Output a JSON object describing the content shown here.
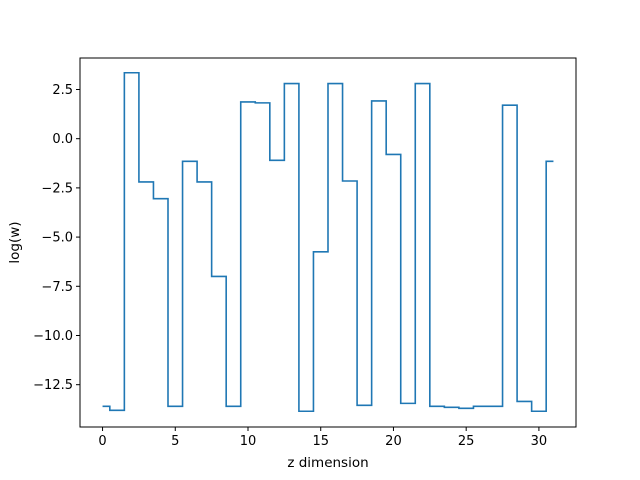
{
  "chart_data": {
    "type": "line",
    "drawstyle": "steps-mid",
    "title": "",
    "xlabel": "z dimension",
    "ylabel": "log(w)",
    "xlim": [
      -1.55,
      32.55
    ],
    "ylim": [
      -14.65,
      4.1
    ],
    "xticks": [
      0,
      5,
      10,
      15,
      20,
      25,
      30
    ],
    "yticks": [
      -12.5,
      -10.0,
      -7.5,
      -5.0,
      -2.5,
      0.0,
      2.5
    ],
    "grid": false,
    "line_color": "#1f77b4",
    "series": [
      {
        "x": [
          0,
          1,
          2,
          3,
          4,
          5,
          6,
          7,
          8,
          9,
          10,
          11,
          12,
          13,
          14,
          15,
          16,
          17,
          18,
          19,
          20,
          21,
          22,
          23,
          24,
          25,
          26,
          27,
          28,
          29,
          30,
          31
        ],
        "values": [
          -13.6,
          -13.8,
          3.35,
          -2.2,
          -3.05,
          -13.6,
          -1.15,
          -2.2,
          -7.0,
          -13.6,
          1.87,
          1.82,
          -1.1,
          2.8,
          -13.85,
          -5.75,
          2.8,
          -2.15,
          -13.55,
          1.92,
          -0.8,
          -13.45,
          2.8,
          -13.6,
          -13.65,
          -13.7,
          -13.6,
          -13.6,
          1.7,
          -13.35,
          -13.85,
          -1.15
        ]
      }
    ]
  }
}
